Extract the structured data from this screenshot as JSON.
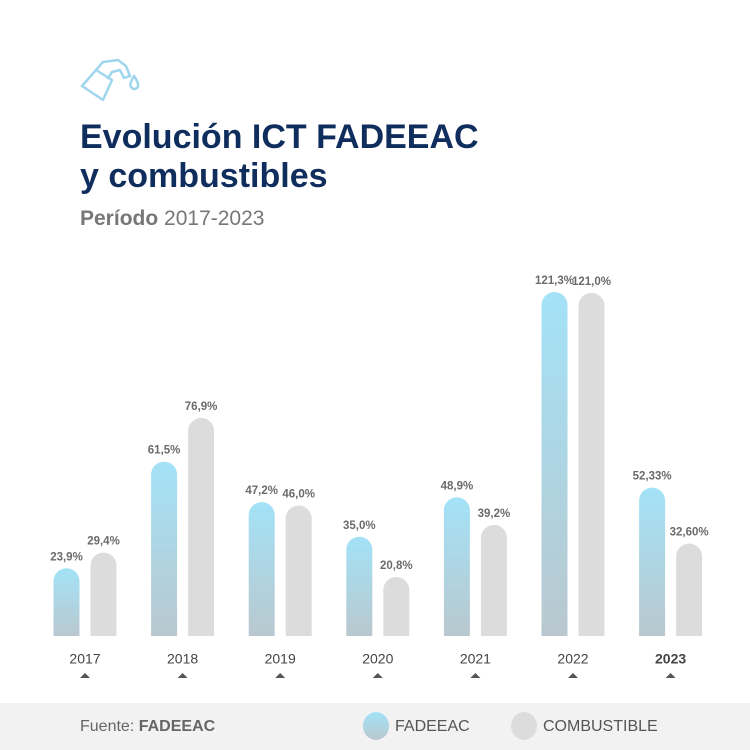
{
  "chart_data": {
    "type": "bar",
    "title_lines": [
      "Evolución ICT FADEEAC",
      "y combustibles"
    ],
    "subtitle": {
      "label": "Período",
      "period": "2017-2023"
    },
    "categories": [
      "2017",
      "2018",
      "2019",
      "2020",
      "2021",
      "2022",
      "2023"
    ],
    "series": [
      {
        "name": "FADEEAC",
        "color": "#a3e2f7",
        "values": [
          23.9,
          61.5,
          47.2,
          35.0,
          48.9,
          121.3,
          52.33
        ],
        "value_labels": [
          "23,9%",
          "61,5%",
          "47,2%",
          "35,0%",
          "48,9%",
          "121,3%",
          "52,33%"
        ]
      },
      {
        "name": "COMBUSTIBLE",
        "color": "#dcdcdc",
        "values": [
          29.4,
          76.9,
          46.0,
          20.8,
          39.2,
          121.0,
          32.6
        ],
        "value_labels": [
          "29,4%",
          "76,9%",
          "46,0%",
          "20,8%",
          "39,2%",
          "121,0%",
          "32,60%"
        ]
      }
    ],
    "source": {
      "label": "Fuente:",
      "value": "FADEEAC"
    }
  }
}
